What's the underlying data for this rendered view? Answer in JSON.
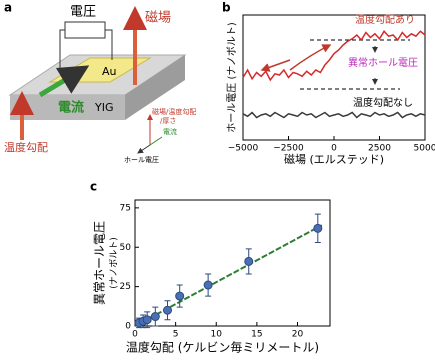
{
  "diagram": {
    "panel_label": "a",
    "voltage": "電圧",
    "field": "磁場",
    "gold": "Au",
    "current": "電流",
    "substrate": "YIG",
    "gradient": "温度勾配",
    "axis_up": [
      "磁場/温度勾配",
      "/厚さ"
    ],
    "axis_current": "電流",
    "axis_hall": "ホール電圧"
  },
  "chart_data": [
    {
      "type": "line",
      "panel_label": "b",
      "ylabel": "ホール電圧 (ナノボルト)",
      "xlabel": "磁場 (エルステッド)",
      "annotations": [
        "温度勾配あり",
        "異常ホール電圧",
        "温度勾配なし"
      ],
      "x": [
        -5000,
        -4750,
        -4500,
        -4250,
        -4000,
        -3750,
        -3500,
        -3250,
        -3000,
        -2750,
        -2500,
        -2250,
        -2000,
        -1750,
        -1500,
        -1250,
        -1000,
        -750,
        -500,
        -250,
        0,
        250,
        500,
        750,
        1000,
        1250,
        1500,
        1750,
        2000,
        2250,
        2500,
        2750,
        3000,
        3250,
        3500,
        3750,
        4000,
        4250,
        4500,
        4750,
        5000
      ],
      "series": [
        {
          "color": "#d42a2a",
          "values": [
            5.0,
            5.6,
            4.9,
            5.4,
            5.1,
            5.5,
            4.8,
            5.3,
            5.2,
            5.6,
            5.0,
            5.4,
            5.3,
            5.1,
            5.5,
            5.2,
            5.6,
            5.4,
            6.0,
            6.4,
            6.9,
            7.2,
            7.6,
            7.9,
            8.1,
            8.4,
            8.0,
            8.6,
            8.2,
            8.5,
            8.1,
            8.7,
            8.3,
            8.4,
            8.0,
            8.6,
            8.2,
            8.5,
            8.3,
            8.7,
            8.4
          ]
        },
        {
          "color": "#3a3a3a",
          "values": [
            2.1,
            1.9,
            2.2,
            1.8,
            2.0,
            2.1,
            1.9,
            2.2,
            2.0,
            1.8,
            2.1,
            2.0,
            1.9,
            2.2,
            2.0,
            2.1,
            1.8,
            2.0,
            2.2,
            1.9,
            2.0,
            2.1,
            1.9,
            2.0,
            2.2,
            1.8,
            2.1,
            2.0,
            1.9,
            2.2,
            2.0,
            2.1,
            1.9,
            2.0,
            2.2,
            1.8,
            2.0,
            2.1,
            1.9,
            2.1,
            2.0
          ]
        }
      ],
      "xlim": [
        -5000,
        5000
      ],
      "ylim": [
        0,
        10
      ],
      "xticks": [
        {
          "value": -5000,
          "label": "−5000"
        },
        {
          "value": -2500,
          "label": "−2500"
        },
        0,
        2500,
        5000
      ]
    },
    {
      "type": "scatter",
      "panel_label": "c",
      "ylabel": [
        "異常ホール電圧",
        "(ナノボルト)"
      ],
      "xlabel": "温度勾配 (ケルビン毎ミリメートル)",
      "x": [
        0.5,
        1,
        1.5,
        2.5,
        4,
        5.5,
        9,
        14,
        22.5
      ],
      "values": [
        2,
        3,
        4,
        6,
        10,
        19,
        26,
        41,
        62
      ],
      "errors": [
        3,
        4,
        5,
        6,
        6,
        7,
        7,
        8,
        9
      ],
      "color": "#4a6fb5",
      "fit": {
        "x": [
          0,
          23
        ],
        "values": [
          0,
          64
        ],
        "color": "#2e7d32"
      },
      "xlim": [
        0,
        24
      ],
      "ylim": [
        0,
        80
      ],
      "xticks": [
        0,
        5,
        10,
        15,
        20
      ],
      "yticks": [
        0,
        25,
        50,
        75
      ]
    }
  ]
}
